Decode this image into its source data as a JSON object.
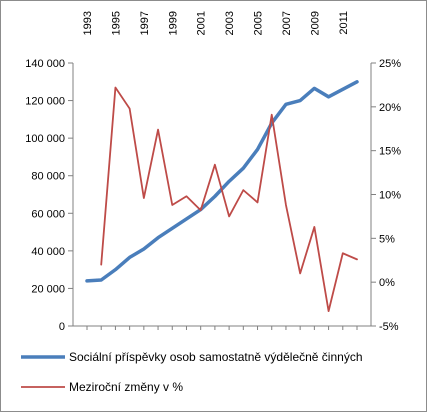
{
  "chart_data": {
    "type": "line",
    "title": "",
    "xlabel": "",
    "x": [
      1993,
      1994,
      1995,
      1996,
      1997,
      1998,
      1999,
      2000,
      2001,
      2002,
      2003,
      2004,
      2005,
      2006,
      2007,
      2008,
      2009,
      2010,
      2011,
      2012
    ],
    "x_tick_labels": [
      "1993",
      "1995",
      "1997",
      "1999",
      "2001",
      "2003",
      "2005",
      "2007",
      "2009",
      "2011"
    ],
    "y_left": {
      "min": 0,
      "max": 140000,
      "step": 20000,
      "tick_labels": [
        "0",
        "20 000",
        "40 000",
        "60 000",
        "80 000",
        "100 000",
        "120 000",
        "140 000"
      ]
    },
    "y_right": {
      "min": -5,
      "max": 25,
      "step": 5,
      "unit": "%",
      "tick_labels": [
        "-5%",
        "0%",
        "5%",
        "10%",
        "15%",
        "20%",
        "25%"
      ]
    },
    "grid": false,
    "legend": "bottom",
    "series": [
      {
        "name": "Sociální příspěvky osob samostatně výdělečně činných",
        "axis": "left",
        "color": "#4a7ebb",
        "values": [
          24000,
          24500,
          30000,
          36500,
          41000,
          47000,
          52000,
          57000,
          62000,
          69000,
          77000,
          84000,
          94000,
          108000,
          118000,
          120000,
          126500,
          122000,
          126000,
          130000
        ]
      },
      {
        "name": "Meziroční změny v %",
        "axis": "right",
        "color": "#be4b48",
        "values": [
          null,
          2.0,
          22.2,
          19.8,
          9.6,
          17.4,
          8.8,
          9.8,
          8.2,
          13.4,
          7.5,
          10.5,
          9.1,
          19.1,
          8.8,
          1.0,
          6.3,
          -3.3,
          3.3,
          2.6
        ]
      }
    ]
  }
}
